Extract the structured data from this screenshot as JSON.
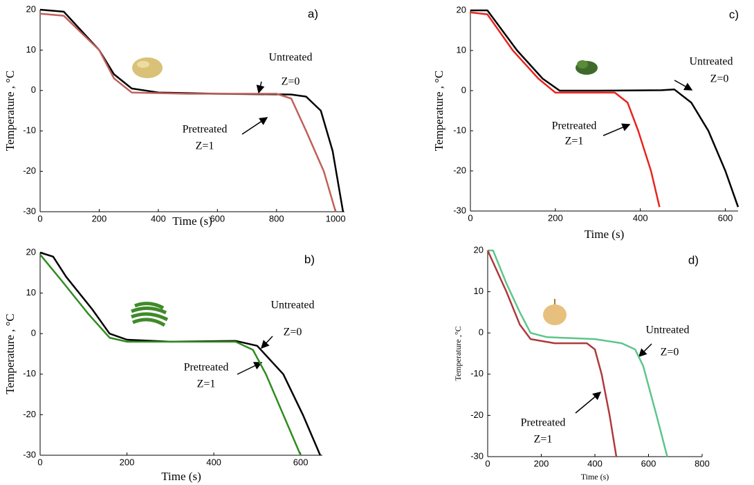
{
  "chart_data": [
    {
      "type": "line",
      "panel_label": "a)",
      "xlabel": "Time (s)",
      "ylabel": "Temperature , °C",
      "xlim": [
        0,
        1030
      ],
      "ylim": [
        -30,
        20
      ],
      "xticks": [
        0,
        200,
        400,
        600,
        800,
        1000
      ],
      "yticks": [
        -30,
        -20,
        -10,
        0,
        10,
        20
      ],
      "annotations": [
        "Untreated",
        "Z=0",
        "Pretreated",
        "Z=1"
      ],
      "series": [
        {
          "name": "Untreated",
          "color": "#000000",
          "x": [
            0,
            80,
            200,
            250,
            310,
            400,
            600,
            850,
            900,
            950,
            990,
            1025
          ],
          "values": [
            20,
            19.5,
            10,
            4,
            0.5,
            -0.5,
            -0.8,
            -1,
            -1.5,
            -5,
            -15,
            -30
          ]
        },
        {
          "name": "Pretreated",
          "color": "#c0605a",
          "x": [
            0,
            80,
            200,
            250,
            310,
            500,
            800,
            850,
            900,
            960,
            1000
          ],
          "values": [
            19,
            18.5,
            10,
            3,
            -0.5,
            -0.8,
            -0.8,
            -2,
            -10,
            -20,
            -30
          ]
        }
      ]
    },
    {
      "type": "line",
      "panel_label": "c)",
      "xlabel": "Time (s)",
      "ylabel": "Temperature , °C",
      "xlim": [
        0,
        630
      ],
      "ylim": [
        -30,
        20
      ],
      "xticks": [
        0,
        200,
        400,
        600
      ],
      "yticks": [
        -30,
        -20,
        -10,
        0,
        10,
        20
      ],
      "annotations": [
        "Untreated",
        "Z=0",
        "Pretreated",
        "Z=1"
      ],
      "series": [
        {
          "name": "Untreated",
          "color": "#000000",
          "x": [
            0,
            40,
            110,
            170,
            210,
            300,
            450,
            480,
            520,
            560,
            600,
            630
          ],
          "values": [
            20,
            20,
            10,
            3,
            0,
            0,
            0.1,
            0.3,
            -3,
            -10,
            -20,
            -29
          ]
        },
        {
          "name": "Pretreated",
          "color": "#e8231f",
          "x": [
            0,
            40,
            100,
            160,
            200,
            340,
            370,
            395,
            425,
            445
          ],
          "values": [
            19.5,
            19,
            10,
            3,
            -0.5,
            -0.5,
            -3,
            -10,
            -20,
            -29
          ]
        }
      ]
    },
    {
      "type": "line",
      "panel_label": "b)",
      "xlabel": "Time (s)",
      "ylabel": "Temperature , °C",
      "xlim": [
        0,
        650
      ],
      "ylim": [
        -30,
        20
      ],
      "xticks": [
        0,
        200,
        400,
        600
      ],
      "yticks": [
        -30,
        -20,
        -10,
        0,
        10,
        20
      ],
      "annotations": [
        "Untreated",
        "Z=0",
        "Pretreated",
        "Z=1"
      ],
      "series": [
        {
          "name": "Untreated",
          "color": "#000000",
          "x": [
            0,
            30,
            60,
            120,
            160,
            200,
            300,
            450,
            500,
            560,
            605,
            645
          ],
          "values": [
            20,
            19,
            14,
            6,
            0,
            -1.5,
            -2,
            -1.8,
            -3,
            -10,
            -20,
            -30
          ]
        },
        {
          "name": "Pretreated",
          "color": "#2e8b1e",
          "x": [
            0,
            50,
            110,
            160,
            200,
            300,
            450,
            490,
            520,
            560,
            600
          ],
          "values": [
            19.5,
            13,
            5,
            -1,
            -2,
            -2,
            -2,
            -4,
            -10,
            -20,
            -30
          ]
        }
      ]
    },
    {
      "type": "line",
      "panel_label": "d)",
      "xlabel": "Time (s)",
      "ylabel": "Temperature ,°C",
      "xlim": [
        0,
        800
      ],
      "ylim": [
        -30,
        20
      ],
      "xticks": [
        0,
        200,
        400,
        600,
        800
      ],
      "yticks": [
        -30,
        -20,
        -10,
        0,
        10,
        20
      ],
      "annotations": [
        "Untreated",
        "Z=0",
        "Pretreated",
        "Z=1"
      ],
      "series": [
        {
          "name": "Untreated",
          "color": "#5cc58a",
          "x": [
            0,
            20,
            70,
            120,
            160,
            220,
            400,
            500,
            550,
            580,
            630,
            670
          ],
          "values": [
            20,
            20,
            12,
            5,
            0,
            -1,
            -1.5,
            -2.5,
            -4,
            -8,
            -20,
            -30
          ]
        },
        {
          "name": "Pretreated",
          "color": "#b0383a",
          "x": [
            0,
            70,
            120,
            160,
            250,
            370,
            400,
            425,
            455,
            480
          ],
          "values": [
            20,
            10,
            2,
            -1.5,
            -2.5,
            -2.5,
            -4,
            -10,
            -20,
            -30
          ]
        }
      ]
    }
  ]
}
